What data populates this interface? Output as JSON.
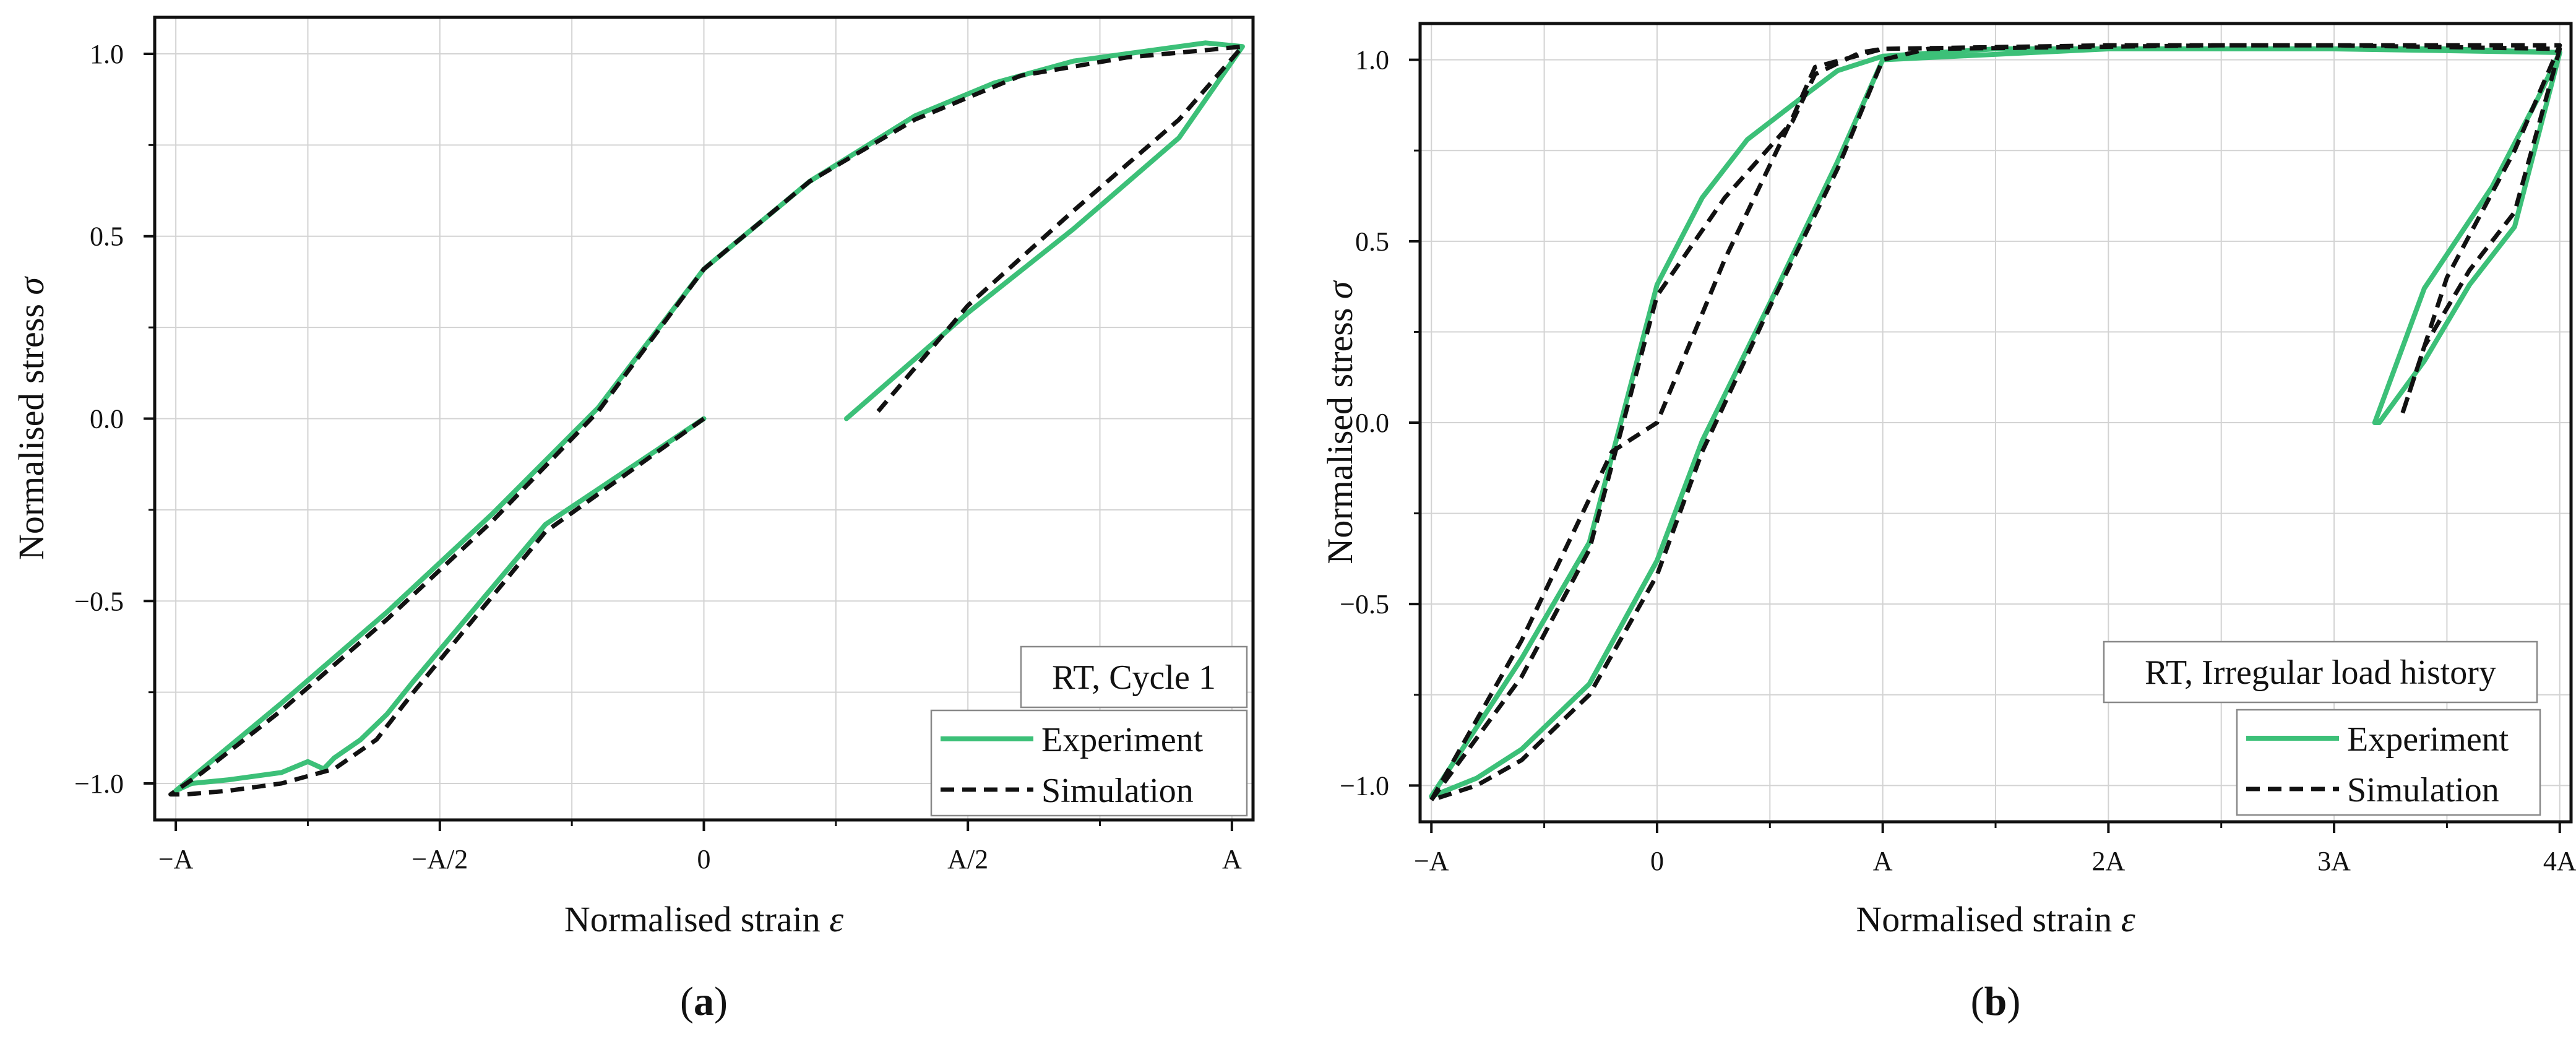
{
  "figure": {
    "colors": {
      "experiment": "#3cc078",
      "simulation": "#111111",
      "grid": "#d3d3d3",
      "axis": "#111111"
    }
  },
  "chart_data": [
    {
      "panel_label": "(a)",
      "type": "line",
      "xlabel_text": "Normalised strain ",
      "xlabel_symbol": "ε",
      "ylabel_text": "Normalised stress ",
      "ylabel_symbol": "σ",
      "xlim": [
        -1.04,
        1.04
      ],
      "ylim": [
        -1.1,
        1.1
      ],
      "xticks": [
        -1.0,
        -0.5,
        0.0,
        0.5,
        1.0
      ],
      "xtick_labels": [
        "−A",
        "−A/2",
        "0",
        "A/2",
        "A"
      ],
      "yticks": [
        -1.0,
        -0.5,
        0.0,
        0.5,
        1.0
      ],
      "ytick_labels": [
        "−1.0",
        "−0.5",
        "0.0",
        "0.5",
        "1.0"
      ],
      "annotation": "RT, Cycle 1",
      "legend": [
        "Experiment",
        "Simulation"
      ],
      "legend_position": "bottom-right",
      "series": [
        {
          "name": "Experiment",
          "color": "#3cc078",
          "dash": "solid",
          "x": [
            0.0,
            -0.3,
            -0.55,
            -0.6,
            -0.65,
            -0.7,
            -0.72,
            -0.75,
            -0.8,
            -0.9,
            -0.97,
            -1.0,
            -0.95,
            -0.8,
            -0.6,
            -0.4,
            -0.2,
            0.0,
            0.2,
            0.4,
            0.55,
            0.7,
            0.8,
            0.9,
            0.95,
            1.02,
            0.9,
            0.7,
            0.5,
            0.27
          ],
          "y": [
            0.0,
            -0.29,
            -0.72,
            -0.81,
            -0.88,
            -0.93,
            -0.96,
            -0.94,
            -0.97,
            -0.99,
            -1.0,
            -1.02,
            -0.96,
            -0.78,
            -0.53,
            -0.26,
            0.03,
            0.41,
            0.65,
            0.83,
            0.92,
            0.98,
            1.0,
            1.02,
            1.03,
            1.02,
            0.77,
            0.52,
            0.29,
            0.0
          ]
        },
        {
          "name": "Simulation",
          "color": "#111111",
          "dash": "dashed",
          "x": [
            0.0,
            -0.3,
            -0.55,
            -0.62,
            -0.7,
            -0.8,
            -0.9,
            -0.98,
            -1.01,
            -0.95,
            -0.8,
            -0.6,
            -0.4,
            -0.2,
            0.0,
            0.2,
            0.4,
            0.6,
            0.8,
            0.95,
            1.02,
            0.9,
            0.7,
            0.5,
            0.33
          ],
          "y": [
            0.0,
            -0.31,
            -0.75,
            -0.88,
            -0.96,
            -1.0,
            -1.02,
            -1.03,
            -1.03,
            -0.97,
            -0.8,
            -0.55,
            -0.28,
            0.02,
            0.41,
            0.65,
            0.82,
            0.94,
            0.99,
            1.01,
            1.02,
            0.82,
            0.57,
            0.31,
            0.02
          ]
        }
      ]
    },
    {
      "panel_label": "(b)",
      "type": "line",
      "xlabel_text": "Normalised strain ",
      "xlabel_symbol": "ε",
      "ylabel_text": "Normalised stress ",
      "ylabel_symbol": "σ",
      "xlim": [
        -1.05,
        4.05
      ],
      "ylim": [
        -1.1,
        1.1
      ],
      "xticks": [
        -1.0,
        0.0,
        1.0,
        2.0,
        3.0,
        4.0
      ],
      "xtick_labels": [
        "−A",
        "0",
        "A",
        "2A",
        "3A",
        "4A"
      ],
      "yticks": [
        -1.0,
        -0.5,
        0.0,
        0.5,
        1.0
      ],
      "ytick_labels": [
        "−1.0",
        "−0.5",
        "0.0",
        "0.5",
        "1.0"
      ],
      "annotation": "RT, Irregular load history",
      "legend": [
        "Experiment",
        "Simulation"
      ],
      "legend_position": "bottom-right",
      "series": [
        {
          "name": "Experiment",
          "color": "#3cc078",
          "dash": "solid",
          "x": [
            -1.0,
            -0.6,
            -0.3,
            0.0,
            0.2,
            0.4,
            0.65,
            0.8,
            1.0,
            1.5,
            2.0,
            3.0,
            4.0,
            3.8,
            3.6,
            3.4,
            3.2,
            3.18,
            3.4,
            3.7,
            3.9,
            4.0,
            3.5,
            3.0,
            2.0,
            1.0,
            0.8,
            0.5,
            0.2,
            0.0,
            -0.3,
            -0.6,
            -0.8,
            -1.0
          ],
          "y": [
            -1.03,
            -0.65,
            -0.33,
            0.38,
            0.62,
            0.78,
            0.9,
            0.97,
            1.01,
            1.03,
            1.03,
            1.03,
            1.02,
            0.54,
            0.38,
            0.17,
            0.0,
            0.0,
            0.37,
            0.65,
            0.89,
            1.02,
            1.03,
            1.03,
            1.03,
            1.0,
            0.72,
            0.33,
            -0.05,
            -0.38,
            -0.72,
            -0.9,
            -0.98,
            -1.03
          ]
        },
        {
          "name": "Simulation",
          "color": "#111111",
          "dash": "dashed",
          "x": [
            -1.0,
            -0.6,
            -0.3,
            0.0,
            0.3,
            0.6,
            0.7,
            0.9,
            1.0,
            2.0,
            3.0,
            4.0,
            3.8,
            3.6,
            3.4,
            3.3,
            3.5,
            3.8,
            4.0,
            3.5,
            2.5,
            1.2,
            1.0,
            0.8,
            0.5,
            0.2,
            0.0,
            -0.3,
            -0.6,
            -0.8,
            -1.0,
            -0.6,
            -0.4,
            -0.2,
            0.0,
            0.3,
            0.6,
            0.7,
            1.0
          ],
          "y": [
            -1.04,
            -0.7,
            -0.35,
            0.35,
            0.62,
            0.83,
            0.96,
            1.02,
            1.03,
            1.04,
            1.04,
            1.03,
            0.58,
            0.42,
            0.21,
            0.02,
            0.4,
            0.75,
            1.04,
            1.04,
            1.04,
            1.03,
            1.0,
            0.7,
            0.32,
            -0.08,
            -0.42,
            -0.75,
            -0.93,
            -1.0,
            -1.04,
            -0.6,
            -0.34,
            -0.08,
            0.0,
            0.45,
            0.84,
            0.98,
            1.03
          ]
        }
      ]
    }
  ]
}
